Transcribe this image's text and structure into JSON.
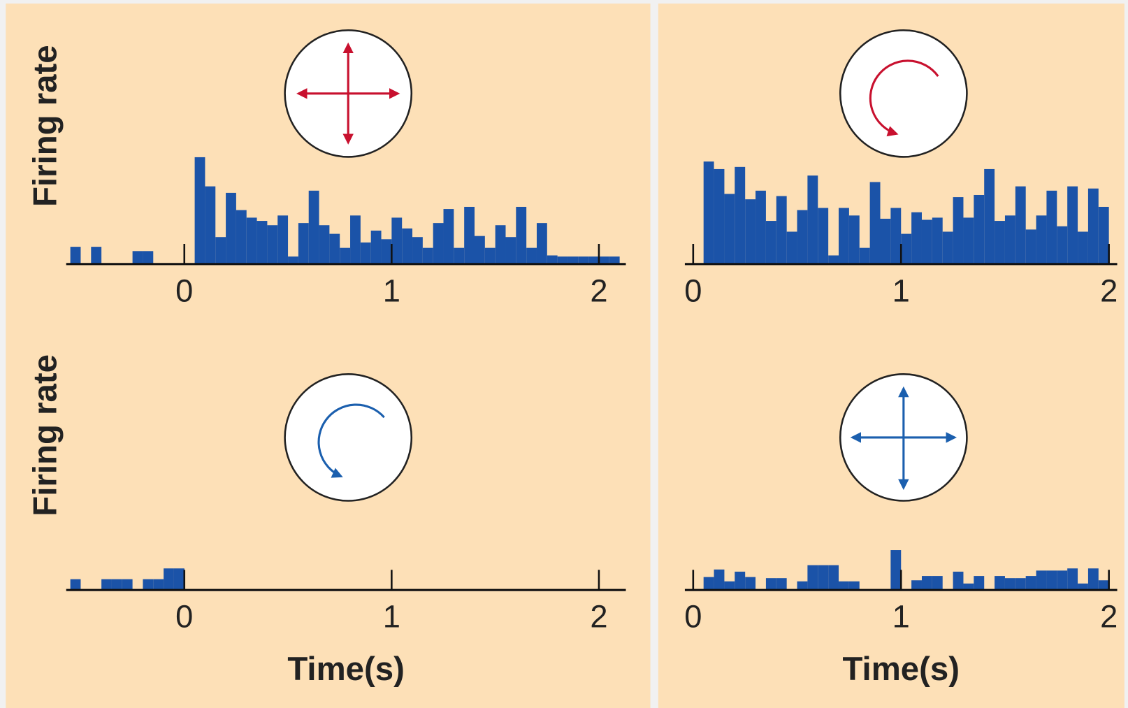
{
  "chart_data": [
    {
      "type": "histogram",
      "ylabel": "Firing rate",
      "color": "#1b53a8",
      "bins": [
        -0.55,
        -0.5,
        -0.45,
        -0.4,
        -0.35,
        -0.3,
        -0.25,
        -0.2,
        -0.15,
        -0.1,
        -0.05,
        0,
        0.05,
        0.1,
        0.15,
        0.2,
        0.25,
        0.3,
        0.35,
        0.4,
        0.45,
        0.5,
        0.55,
        0.6,
        0.65,
        0.7,
        0.75,
        0.8,
        0.85,
        0.9,
        0.95,
        1,
        1.05,
        1.1,
        1.15,
        1.2,
        1.25,
        1.3,
        1.35,
        1.4,
        1.45,
        1.5,
        1.55,
        1.6,
        1.65,
        1.7,
        1.75,
        1.8,
        1.85,
        1.9,
        1.95,
        2,
        2.05,
        2.1
      ],
      "values": [
        1.6,
        0,
        1.6,
        0,
        0,
        0,
        1.2,
        1.2,
        0,
        0,
        0,
        0,
        9.9,
        7.2,
        2.5,
        6.6,
        5.0,
        4.3,
        4.0,
        3.6,
        4.5,
        0.7,
        3.8,
        6.8,
        3.6,
        2.8,
        1.5,
        4.5,
        2.0,
        3.1,
        2.3,
        4.3,
        3.3,
        2.5,
        1.5,
        3.8,
        5.1,
        1.5,
        5.3,
        2.6,
        1.5,
        3.6,
        2.5,
        5.3,
        1.5,
        3.8,
        0.8,
        0.7,
        0.7,
        0.7,
        0.7,
        0.7,
        0.7
      ],
      "xlim": [
        -0.57,
        2.13
      ],
      "xticks": [
        0,
        1,
        2
      ],
      "ylim": [
        0,
        10
      ]
    },
    {
      "type": "histogram",
      "color": "#1b53a8",
      "bins": [
        0.05,
        0.1,
        0.15,
        0.2,
        0.25,
        0.3,
        0.35,
        0.4,
        0.45,
        0.5,
        0.55,
        0.6,
        0.65,
        0.7,
        0.75,
        0.8,
        0.85,
        0.9,
        0.95,
        1,
        1.05,
        1.1,
        1.15,
        1.2,
        1.25,
        1.3,
        1.35,
        1.4,
        1.45,
        1.5,
        1.55,
        1.6,
        1.65,
        1.7,
        1.75,
        1.8,
        1.85,
        1.9,
        1.95,
        2
      ],
      "values": [
        9.5,
        8.8,
        6.5,
        9.0,
        6.0,
        6.8,
        4.0,
        6.3,
        3.0,
        5.0,
        8.2,
        5.2,
        0.8,
        5.2,
        4.5,
        1.5,
        7.6,
        4.2,
        5.2,
        2.8,
        4.8,
        4.1,
        4.3,
        3.0,
        6.2,
        4.3,
        6.4,
        8.8,
        4.0,
        4.5,
        7.2,
        3.2,
        4.5,
        6.8,
        3.5,
        7.2,
        3.0,
        7.0,
        5.3
      ],
      "xlim": [
        -0.04,
        2.04
      ],
      "xticks": [
        0,
        1,
        2
      ],
      "ylim": [
        0,
        10
      ]
    },
    {
      "type": "histogram",
      "ylabel": "Firing rate",
      "xlabel": "Time(s)",
      "color": "#1b53a8",
      "bins": [
        -0.55,
        -0.5,
        -0.45,
        -0.4,
        -0.35,
        -0.3,
        -0.25,
        -0.2,
        -0.15,
        -0.1,
        -0.05,
        0
      ],
      "values": [
        1.0,
        0,
        0,
        1.0,
        1.0,
        1.0,
        0,
        1.0,
        1.0,
        2.0,
        2.0
      ],
      "xlim": [
        -0.57,
        2.13
      ],
      "xticks": [
        0,
        1,
        2
      ],
      "ylim": [
        0,
        10
      ]
    },
    {
      "type": "histogram",
      "xlabel": "Time(s)",
      "color": "#1b53a8",
      "bins": [
        0.05,
        0.1,
        0.15,
        0.2,
        0.25,
        0.3,
        0.35,
        0.4,
        0.45,
        0.5,
        0.55,
        0.6,
        0.65,
        0.7,
        0.75,
        0.8,
        0.85,
        0.9,
        0.95,
        1,
        1.05,
        1.1,
        1.15,
        1.2,
        1.25,
        1.3,
        1.35,
        1.4,
        1.45,
        1.5,
        1.55,
        1.6,
        1.65,
        1.7,
        1.75,
        1.8,
        1.85,
        1.9,
        1.95,
        2
      ],
      "values": [
        1.2,
        1.9,
        0.8,
        1.7,
        1.2,
        0,
        1.1,
        1.1,
        0,
        0.8,
        2.3,
        2.3,
        2.3,
        0.8,
        0.8,
        0,
        0,
        0,
        3.7,
        0,
        0.9,
        1.3,
        1.3,
        0,
        1.7,
        0.6,
        1.3,
        0,
        1.3,
        1.1,
        1.1,
        1.3,
        1.8,
        1.8,
        1.8,
        2.0,
        0.6,
        2.0,
        0.9
      ],
      "xlim": [
        -0.04,
        2.04
      ],
      "xticks": [
        0,
        1,
        2
      ],
      "ylim": [
        0,
        10
      ]
    }
  ]
}
